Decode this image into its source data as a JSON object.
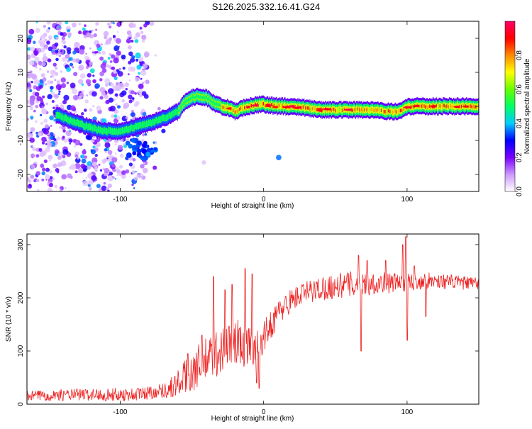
{
  "title": "S126.2025.332.16.41.G24",
  "chart_data": [
    {
      "type": "heatmap",
      "xlabel": "Height of straight line (km)",
      "ylabel": "Frequency (Hz)",
      "xlim": [
        -165,
        150
      ],
      "ylim": [
        -25,
        25
      ],
      "xticks": [
        -100,
        0,
        100
      ],
      "yticks": [
        -20,
        -10,
        0,
        10,
        20
      ],
      "colorbar": {
        "label": "Normalized spectral amplitude",
        "range": [
          0.0,
          1.0
        ],
        "ticks": [
          0.0,
          0.2,
          0.4,
          0.6,
          0.8
        ],
        "tick_labels": [
          "0.0",
          "0.2",
          "0.4",
          "0.6",
          "0.8"
        ],
        "colors": [
          "#ffffff",
          "#cc99ff",
          "#7a00ff",
          "#0000ff",
          "#00ccff",
          "#00ff66",
          "#66ff00",
          "#ffff00",
          "#ff8800",
          "#ff0000",
          "#ff0066"
        ]
      },
      "ridge": {
        "x": [
          -145,
          -130,
          -115,
          -100,
          -90,
          -80,
          -70,
          -60,
          -55,
          -50,
          -45,
          -40,
          -35,
          -30,
          -25,
          -20,
          -15,
          -10,
          -5,
          0,
          10,
          20,
          30,
          40,
          50,
          60,
          70,
          80,
          85,
          90,
          95,
          100,
          110,
          120,
          130,
          140,
          150
        ],
        "y": [
          -2.5,
          -5,
          -7,
          -7.5,
          -6,
          -5,
          -3.5,
          -1.5,
          1.5,
          2.5,
          3,
          2.5,
          1,
          0,
          -0.5,
          -1.5,
          -0.5,
          0,
          0.5,
          0.5,
          0,
          0,
          -0.5,
          -1,
          -1,
          -1,
          -1,
          -1,
          -1.5,
          -1.5,
          -1.5,
          0,
          0,
          0,
          0,
          0,
          0
        ]
      },
      "secondary_cluster": {
        "x": [
          -90,
          -85,
          -80
        ],
        "y": [
          -12,
          -13,
          -12
        ]
      }
    },
    {
      "type": "line",
      "xlabel": "Height of straight line (km)",
      "ylabel": "SNR (10 * v/v)",
      "xlim": [
        -165,
        150
      ],
      "ylim": [
        0,
        320
      ],
      "xticks": [
        -100,
        0,
        100
      ],
      "yticks": [
        0,
        100,
        200,
        300
      ],
      "series": [
        {
          "color": "#ee2222",
          "x": [
            -165,
            -150,
            -130,
            -110,
            -90,
            -80,
            -70,
            -65,
            -60,
            -55,
            -50,
            -45,
            -40,
            -35,
            -30,
            -25,
            -20,
            -15,
            -10,
            -5,
            0,
            5,
            10,
            15,
            20,
            30,
            40,
            50,
            60,
            70,
            80,
            90,
            100,
            110,
            120,
            130,
            140,
            150
          ],
          "y": [
            15,
            17,
            18,
            18,
            18,
            22,
            26,
            30,
            38,
            50,
            62,
            72,
            82,
            92,
            100,
            108,
            115,
            112,
            108,
            112,
            125,
            150,
            170,
            185,
            198,
            210,
            218,
            222,
            225,
            228,
            228,
            228,
            230,
            232,
            232,
            230,
            228,
            226
          ],
          "spikes": [
            {
              "x": -53,
              "y": 95
            },
            {
              "x": -43,
              "y": 130
            },
            {
              "x": -35,
              "y": 240
            },
            {
              "x": -27,
              "y": 215
            },
            {
              "x": -22,
              "y": 225
            },
            {
              "x": -13,
              "y": 255
            },
            {
              "x": -8,
              "y": 245
            },
            {
              "x": -5,
              "y": 40
            },
            {
              "x": -3,
              "y": 30
            },
            {
              "x": 66,
              "y": 280
            },
            {
              "x": 68,
              "y": 100
            },
            {
              "x": 72,
              "y": 270
            },
            {
              "x": 85,
              "y": 270
            },
            {
              "x": 97,
              "y": 300
            },
            {
              "x": 99,
              "y": 315
            },
            {
              "x": 100,
              "y": 120
            },
            {
              "x": 105,
              "y": 260
            },
            {
              "x": 113,
              "y": 165
            }
          ],
          "noise_amplitude": [
            [
              -165,
              10
            ],
            [
              -70,
              14
            ],
            [
              -50,
              40
            ],
            [
              -20,
              50
            ],
            [
              0,
              30
            ],
            [
              20,
              22
            ],
            [
              60,
              25
            ],
            [
              110,
              16
            ],
            [
              150,
              12
            ]
          ]
        }
      ]
    }
  ]
}
